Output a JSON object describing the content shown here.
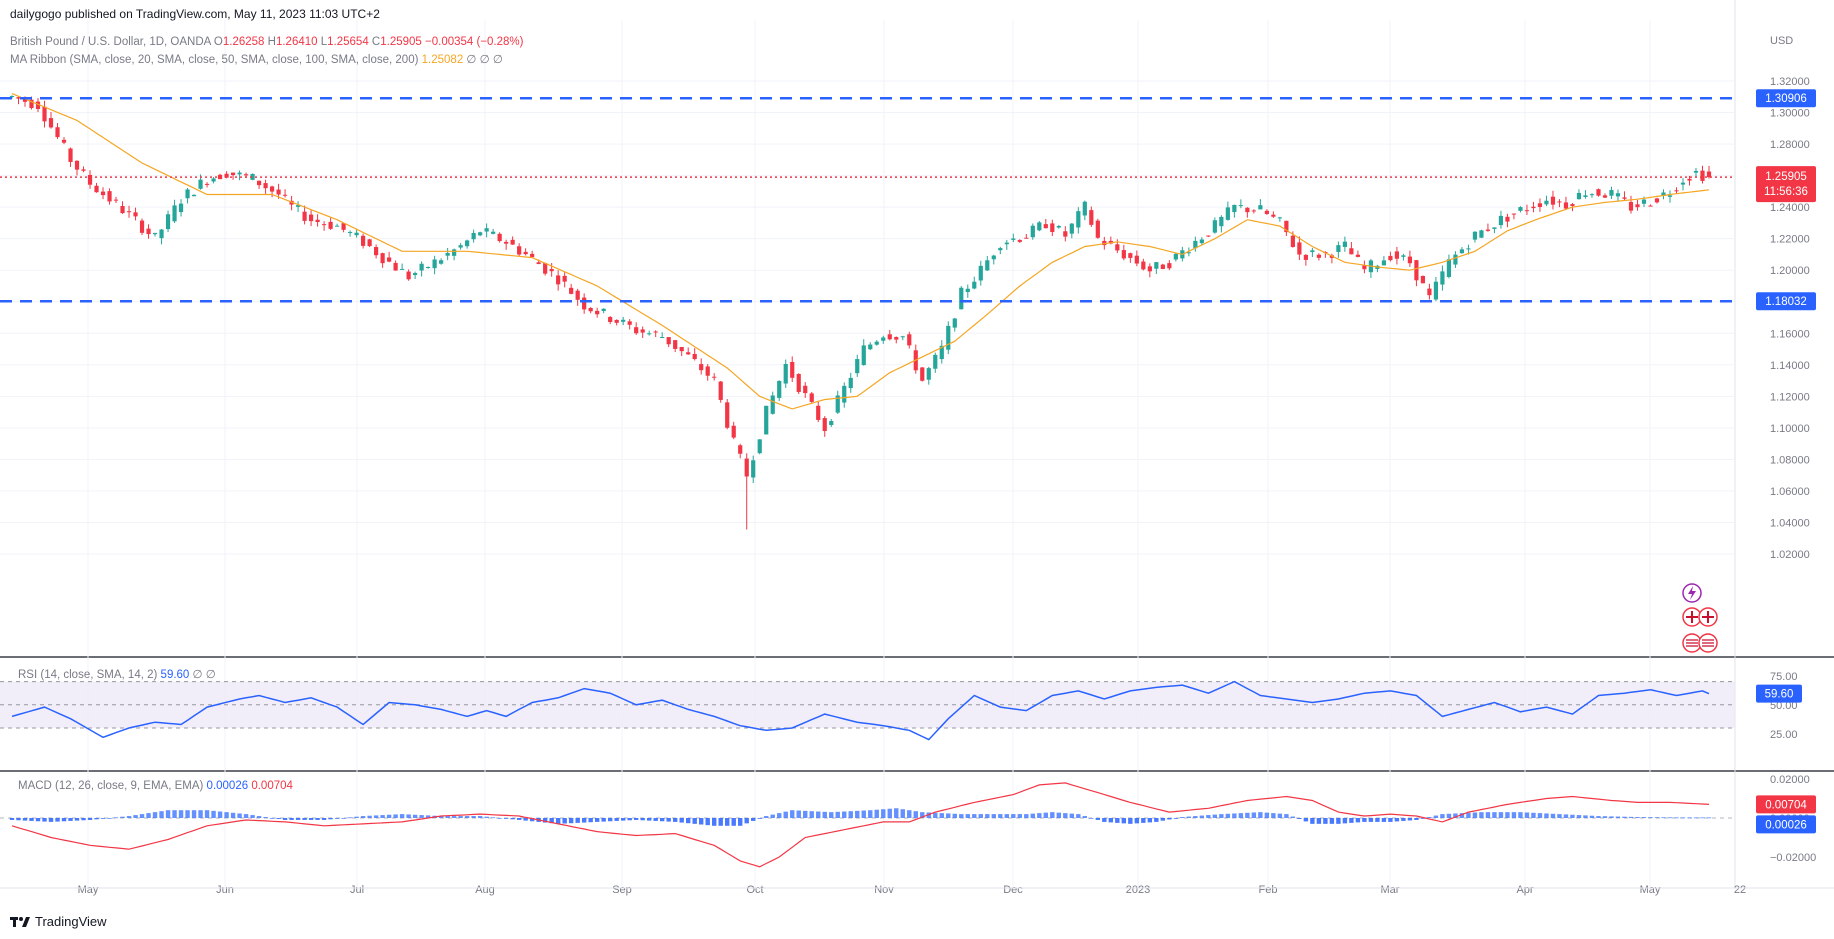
{
  "header": {
    "publisher": "dailygogo published on TradingView.com, May 11, 2023 11:03 UTC+2",
    "symbol": "British Pound / U.S. Dollar, 1D, OANDA",
    "o_label": "O",
    "o": "1.26258",
    "h_label": "H",
    "h": "1.26410",
    "l_label": "L",
    "l": "1.25654",
    "c_label": "C",
    "c": "1.25905",
    "change": "−0.00354 (−0.28%)",
    "ma_ribbon": "MA Ribbon (SMA, close, 20, SMA, close, 50, SMA, close, 100, SMA, close, 200)",
    "ma_value": "1.25082",
    "ma_nulls": "∅ ∅ ∅"
  },
  "rsi_legend": {
    "name": "RSI (14, close, SMA, 14, 2)",
    "value": "59.60",
    "nulls": "∅ ∅"
  },
  "macd_legend": {
    "name": "MACD (12, 26, close, 9, EMA, EMA)",
    "v1": "0.00026",
    "v2": "0.00704"
  },
  "footer": {
    "brand": "TradingView"
  },
  "colors": {
    "up": "#26a69a",
    "down": "#f23645",
    "ma": "#f5a623",
    "level": "#2962ff",
    "rsi": "#2962ff",
    "macd_signal": "#f23645"
  },
  "chart_data": [
    {
      "type": "candlestick",
      "title": "British Pound / U.S. Dollar, 1D, OANDA",
      "currency": "USD",
      "ylim": [
        1.0,
        1.33
      ],
      "y_ticks": [
        "1.32000",
        "1.30000",
        "1.28000",
        "1.26000",
        "1.24000",
        "1.22000",
        "1.20000",
        "1.18000",
        "1.16000",
        "1.14000",
        "1.12000",
        "1.10000",
        "1.08000",
        "1.06000",
        "1.04000",
        "1.02000"
      ],
      "x_ticks": [
        "May",
        "Jun",
        "Jul",
        "Aug",
        "Sep",
        "Oct",
        "Nov",
        "Dec",
        "2023",
        "Feb",
        "Mar",
        "Apr",
        "May",
        "22"
      ],
      "horizontal_levels": [
        {
          "value": 1.30906,
          "label": "1.30906",
          "style": "dashed"
        },
        {
          "value": 1.18032,
          "label": "1.18032",
          "style": "dashed"
        },
        {
          "value": 1.25905,
          "label": "1.25905",
          "style": "dotted",
          "countdown": "11:56:36"
        }
      ],
      "close_path_anchors": [
        [
          0,
          1.31
        ],
        [
          4,
          1.305
        ],
        [
          9,
          1.27
        ],
        [
          12,
          1.255
        ],
        [
          15,
          1.245
        ],
        [
          18,
          1.235
        ],
        [
          22,
          1.22
        ],
        [
          26,
          1.245
        ],
        [
          30,
          1.258
        ],
        [
          33,
          1.262
        ],
        [
          37,
          1.258
        ],
        [
          41,
          1.248
        ],
        [
          43,
          1.24
        ],
        [
          46,
          1.232
        ],
        [
          50,
          1.228
        ],
        [
          54,
          1.218
        ],
        [
          58,
          1.205
        ],
        [
          61,
          1.196
        ],
        [
          65,
          1.205
        ],
        [
          69,
          1.215
        ],
        [
          72,
          1.225
        ],
        [
          76,
          1.218
        ],
        [
          79,
          1.21
        ],
        [
          84,
          1.195
        ],
        [
          88,
          1.178
        ],
        [
          92,
          1.17
        ],
        [
          96,
          1.162
        ],
        [
          100,
          1.158
        ],
        [
          104,
          1.145
        ],
        [
          108,
          1.13
        ],
        [
          111,
          1.09
        ],
        [
          113,
          1.07
        ],
        [
          116,
          1.11
        ],
        [
          119,
          1.14
        ],
        [
          122,
          1.12
        ],
        [
          125,
          1.1
        ],
        [
          128,
          1.125
        ],
        [
          131,
          1.15
        ],
        [
          134,
          1.16
        ],
        [
          137,
          1.158
        ],
        [
          140,
          1.13
        ],
        [
          143,
          1.15
        ],
        [
          146,
          1.185
        ],
        [
          149,
          1.2
        ],
        [
          152,
          1.218
        ],
        [
          156,
          1.222
        ],
        [
          159,
          1.23
        ],
        [
          162,
          1.222
        ],
        [
          165,
          1.24
        ],
        [
          167,
          1.22
        ],
        [
          171,
          1.21
        ],
        [
          175,
          1.2
        ],
        [
          178,
          1.205
        ],
        [
          181,
          1.215
        ],
        [
          185,
          1.228
        ],
        [
          188,
          1.24
        ],
        [
          192,
          1.238
        ],
        [
          195,
          1.23
        ],
        [
          198,
          1.21
        ],
        [
          202,
          1.21
        ],
        [
          205,
          1.215
        ],
        [
          208,
          1.2
        ],
        [
          212,
          1.21
        ],
        [
          215,
          1.205
        ],
        [
          218,
          1.182
        ],
        [
          221,
          1.205
        ],
        [
          225,
          1.222
        ],
        [
          229,
          1.232
        ],
        [
          232,
          1.238
        ],
        [
          236,
          1.245
        ],
        [
          239,
          1.242
        ],
        [
          242,
          1.25
        ],
        [
          246,
          1.248
        ],
        [
          249,
          1.24
        ],
        [
          252,
          1.244
        ],
        [
          255,
          1.25
        ],
        [
          257,
          1.258
        ],
        [
          259,
          1.262
        ],
        [
          261,
          1.259
        ]
      ],
      "ma20_path_anchors": [
        [
          0,
          1.312
        ],
        [
          10,
          1.295
        ],
        [
          20,
          1.268
        ],
        [
          30,
          1.248
        ],
        [
          40,
          1.248
        ],
        [
          50,
          1.232
        ],
        [
          60,
          1.212
        ],
        [
          70,
          1.212
        ],
        [
          80,
          1.208
        ],
        [
          90,
          1.19
        ],
        [
          100,
          1.165
        ],
        [
          110,
          1.138
        ],
        [
          115,
          1.12
        ],
        [
          120,
          1.112
        ],
        [
          125,
          1.118
        ],
        [
          130,
          1.12
        ],
        [
          135,
          1.135
        ],
        [
          140,
          1.145
        ],
        [
          145,
          1.155
        ],
        [
          150,
          1.172
        ],
        [
          155,
          1.19
        ],
        [
          160,
          1.205
        ],
        [
          165,
          1.215
        ],
        [
          170,
          1.218
        ],
        [
          175,
          1.215
        ],
        [
          180,
          1.21
        ],
        [
          185,
          1.22
        ],
        [
          190,
          1.232
        ],
        [
          195,
          1.228
        ],
        [
          200,
          1.215
        ],
        [
          205,
          1.205
        ],
        [
          210,
          1.202
        ],
        [
          215,
          1.2
        ],
        [
          220,
          1.205
        ],
        [
          225,
          1.212
        ],
        [
          230,
          1.225
        ],
        [
          235,
          1.233
        ],
        [
          240,
          1.24
        ],
        [
          245,
          1.243
        ],
        [
          250,
          1.245
        ],
        [
          255,
          1.248
        ],
        [
          261,
          1.251
        ]
      ]
    },
    {
      "type": "line",
      "title": "RSI (14, close, SMA, 14, 2)",
      "ylim": [
        15,
        85
      ],
      "y_ticks": [
        "75.00",
        "50.00",
        "25.00"
      ],
      "bands": [
        70,
        50,
        30
      ],
      "last_value": "59.60",
      "path_anchors": [
        [
          0,
          40
        ],
        [
          5,
          48
        ],
        [
          9,
          38
        ],
        [
          14,
          22
        ],
        [
          18,
          30
        ],
        [
          22,
          35
        ],
        [
          26,
          33
        ],
        [
          30,
          48
        ],
        [
          35,
          55
        ],
        [
          38,
          58
        ],
        [
          42,
          52
        ],
        [
          46,
          56
        ],
        [
          50,
          48
        ],
        [
          54,
          33
        ],
        [
          58,
          52
        ],
        [
          62,
          50
        ],
        [
          66,
          46
        ],
        [
          70,
          40
        ],
        [
          73,
          45
        ],
        [
          76,
          40
        ],
        [
          80,
          52
        ],
        [
          84,
          56
        ],
        [
          88,
          64
        ],
        [
          92,
          60
        ],
        [
          96,
          50
        ],
        [
          100,
          54
        ],
        [
          104,
          46
        ],
        [
          108,
          40
        ],
        [
          112,
          32
        ],
        [
          116,
          28
        ],
        [
          120,
          30
        ],
        [
          125,
          42
        ],
        [
          130,
          35
        ],
        [
          134,
          32
        ],
        [
          138,
          28
        ],
        [
          141,
          20
        ],
        [
          144,
          38
        ],
        [
          148,
          58
        ],
        [
          152,
          48
        ],
        [
          156,
          45
        ],
        [
          160,
          58
        ],
        [
          164,
          62
        ],
        [
          168,
          55
        ],
        [
          172,
          62
        ],
        [
          176,
          65
        ],
        [
          180,
          67
        ],
        [
          184,
          60
        ],
        [
          188,
          70
        ],
        [
          192,
          58
        ],
        [
          196,
          55
        ],
        [
          200,
          52
        ],
        [
          204,
          55
        ],
        [
          208,
          60
        ],
        [
          212,
          62
        ],
        [
          216,
          58
        ],
        [
          220,
          40
        ],
        [
          224,
          46
        ],
        [
          228,
          52
        ],
        [
          232,
          44
        ],
        [
          236,
          48
        ],
        [
          240,
          42
        ],
        [
          244,
          58
        ],
        [
          248,
          60
        ],
        [
          252,
          63
        ],
        [
          256,
          58
        ],
        [
          260,
          62
        ],
        [
          261,
          59.6
        ]
      ]
    },
    {
      "type": "bar+line",
      "title": "MACD (12, 26, close, 9, EMA, EMA)",
      "ylim": [
        -0.028,
        0.022
      ],
      "y_ticks": [
        "0.02000",
        "0.00000",
        "−0.02000"
      ],
      "signal_last": "0.00704",
      "hist_last": "0.00026",
      "signal_path_anchors": [
        [
          0,
          -0.004
        ],
        [
          6,
          -0.01
        ],
        [
          12,
          -0.014
        ],
        [
          18,
          -0.016
        ],
        [
          24,
          -0.011
        ],
        [
          30,
          -0.004
        ],
        [
          36,
          -0.001
        ],
        [
          42,
          -0.002
        ],
        [
          48,
          -0.004
        ],
        [
          54,
          -0.003
        ],
        [
          60,
          -0.002
        ],
        [
          66,
          0.001
        ],
        [
          72,
          0.002
        ],
        [
          78,
          0.001
        ],
        [
          84,
          -0.003
        ],
        [
          90,
          -0.007
        ],
        [
          96,
          -0.009
        ],
        [
          102,
          -0.008
        ],
        [
          108,
          -0.014
        ],
        [
          112,
          -0.022
        ],
        [
          115,
          -0.025
        ],
        [
          118,
          -0.02
        ],
        [
          122,
          -0.01
        ],
        [
          128,
          -0.006
        ],
        [
          134,
          -0.002
        ],
        [
          138,
          -0.002
        ],
        [
          142,
          0.003
        ],
        [
          148,
          0.008
        ],
        [
          154,
          0.012
        ],
        [
          158,
          0.017
        ],
        [
          162,
          0.018
        ],
        [
          166,
          0.014
        ],
        [
          172,
          0.008
        ],
        [
          178,
          0.003
        ],
        [
          184,
          0.005
        ],
        [
          190,
          0.009
        ],
        [
          196,
          0.011
        ],
        [
          200,
          0.009
        ],
        [
          204,
          0.003
        ],
        [
          208,
          0.001
        ],
        [
          212,
          0.002
        ],
        [
          216,
          0.001
        ],
        [
          220,
          -0.002
        ],
        [
          224,
          0.003
        ],
        [
          230,
          0.007
        ],
        [
          236,
          0.01
        ],
        [
          240,
          0.011
        ],
        [
          246,
          0.009
        ],
        [
          250,
          0.008
        ],
        [
          255,
          0.008
        ],
        [
          261,
          0.007
        ]
      ],
      "histogram_path_anchors": [
        [
          0,
          -0.001
        ],
        [
          6,
          -0.002
        ],
        [
          12,
          -0.001
        ],
        [
          18,
          0.001
        ],
        [
          24,
          0.004
        ],
        [
          30,
          0.004
        ],
        [
          36,
          0.002
        ],
        [
          42,
          -0.001
        ],
        [
          48,
          -0.001
        ],
        [
          54,
          0.001
        ],
        [
          60,
          0.002
        ],
        [
          66,
          0.001
        ],
        [
          72,
          0.001
        ],
        [
          78,
          -0.001
        ],
        [
          84,
          -0.003
        ],
        [
          90,
          -0.002
        ],
        [
          96,
          -0.001
        ],
        [
          102,
          -0.002
        ],
        [
          108,
          -0.004
        ],
        [
          112,
          -0.004
        ],
        [
          116,
          0.001
        ],
        [
          120,
          0.004
        ],
        [
          126,
          0.003
        ],
        [
          132,
          0.004
        ],
        [
          136,
          0.005
        ],
        [
          140,
          0.003
        ],
        [
          146,
          0.002
        ],
        [
          150,
          0.002
        ],
        [
          156,
          0.002
        ],
        [
          160,
          0.003
        ],
        [
          164,
          0.002
        ],
        [
          168,
          -0.002
        ],
        [
          172,
          -0.003
        ],
        [
          176,
          -0.002
        ],
        [
          180,
          0.0005
        ],
        [
          186,
          0.002
        ],
        [
          192,
          0.003
        ],
        [
          196,
          0.002
        ],
        [
          200,
          -0.003
        ],
        [
          204,
          -0.003
        ],
        [
          208,
          -0.002
        ],
        [
          212,
          -0.002
        ],
        [
          216,
          -0.001
        ],
        [
          220,
          0.002
        ],
        [
          226,
          0.003
        ],
        [
          232,
          0.003
        ],
        [
          238,
          0.002
        ],
        [
          244,
          0.001
        ],
        [
          250,
          0.0005
        ],
        [
          256,
          0.0003
        ],
        [
          261,
          0.0003
        ]
      ]
    }
  ]
}
